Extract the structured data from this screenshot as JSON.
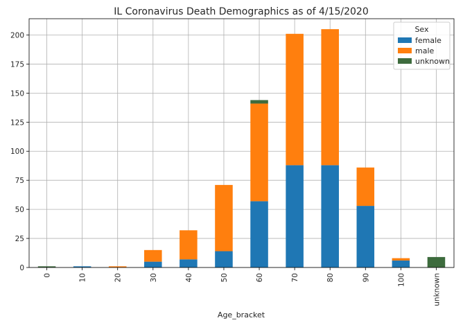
{
  "chart_data": {
    "type": "bar",
    "stacked": true,
    "title": "IL Coronavirus Death Demographics as of 4/15/2020",
    "xlabel": "Age_bracket",
    "ylabel": "",
    "categories": [
      "0",
      "10",
      "20",
      "30",
      "40",
      "50",
      "60",
      "70",
      "80",
      "90",
      "100",
      "unknown"
    ],
    "series": [
      {
        "name": "female",
        "color": "#1f77b4",
        "values": [
          0,
          1,
          0,
          5,
          7,
          14,
          57,
          88,
          88,
          53,
          6,
          0
        ]
      },
      {
        "name": "male",
        "color": "#ff7f0e",
        "values": [
          0,
          0,
          1,
          10,
          25,
          57,
          84,
          113,
          117,
          33,
          2,
          0
        ]
      },
      {
        "name": "unknown",
        "color": "#3d6b3d",
        "values": [
          1,
          0,
          0,
          0,
          0,
          0,
          3,
          0,
          0,
          0,
          0,
          9
        ]
      }
    ],
    "ylim": [
      0,
      214
    ],
    "yticks": [
      0,
      25,
      50,
      75,
      100,
      125,
      150,
      175,
      200
    ],
    "grid": true,
    "legend": {
      "title": "Sex",
      "placement": "top-right"
    }
  }
}
